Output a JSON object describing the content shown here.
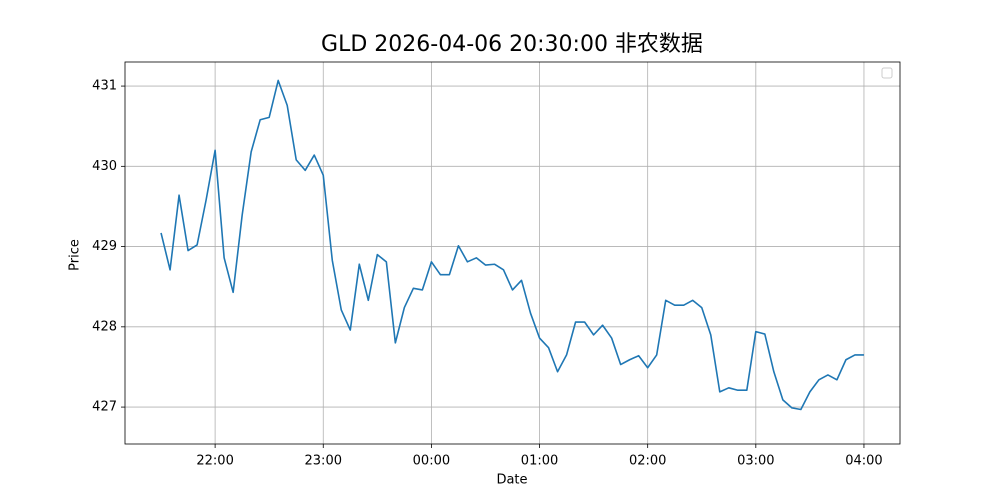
{
  "chart_data": {
    "type": "line",
    "title": "GLD 2026-04-06 20:30:00 非农数据",
    "x_label": "Date",
    "y_label": "Price",
    "x": [
      "21:30",
      "21:35",
      "21:40",
      "21:45",
      "21:50",
      "21:55",
      "22:00",
      "22:05",
      "22:10",
      "22:15",
      "22:20",
      "22:25",
      "22:30",
      "22:35",
      "22:40",
      "22:45",
      "22:50",
      "22:55",
      "23:00",
      "23:05",
      "23:10",
      "23:15",
      "23:20",
      "23:25",
      "23:30",
      "23:35",
      "23:40",
      "23:45",
      "23:50",
      "23:55",
      "00:00",
      "00:05",
      "00:10",
      "00:15",
      "00:20",
      "00:25",
      "00:30",
      "00:35",
      "00:40",
      "00:45",
      "00:50",
      "00:55",
      "01:00",
      "01:05",
      "01:10",
      "01:15",
      "01:20",
      "01:25",
      "01:30",
      "01:35",
      "01:40",
      "01:45",
      "01:50",
      "01:55",
      "02:00",
      "02:05",
      "02:10",
      "02:15",
      "02:20",
      "02:25",
      "02:30",
      "02:35",
      "02:40",
      "02:45",
      "02:50",
      "02:55",
      "03:00",
      "03:05",
      "03:10",
      "03:15",
      "03:20",
      "03:25",
      "03:30",
      "03:35",
      "03:40",
      "03:45",
      "03:50",
      "03:55",
      "04:00"
    ],
    "series": [
      {
        "name": "GLD",
        "color": "#1f77b4",
        "values": [
          429.17,
          428.71,
          429.64,
          428.95,
          429.02,
          429.58,
          430.2,
          428.86,
          428.43,
          429.39,
          430.18,
          430.58,
          430.61,
          431.07,
          430.76,
          430.08,
          429.95,
          430.14,
          429.89,
          428.83,
          428.21,
          427.96,
          428.78,
          428.33,
          428.9,
          428.81,
          427.8,
          428.24,
          428.48,
          428.46,
          428.81,
          428.65,
          428.65,
          429.01,
          428.81,
          428.86,
          428.77,
          428.78,
          428.71,
          428.46,
          428.58,
          428.17,
          427.86,
          427.74,
          427.44,
          427.65,
          428.06,
          428.06,
          427.9,
          428.02,
          427.86,
          427.53,
          427.59,
          427.64,
          427.49,
          427.65,
          428.33,
          428.27,
          428.27,
          428.33,
          428.24,
          427.9,
          427.19,
          427.24,
          427.21,
          427.21,
          427.94,
          427.91,
          427.44,
          427.09,
          426.99,
          426.97,
          427.19,
          427.34,
          427.4,
          427.34,
          427.59,
          427.65,
          427.65
        ]
      }
    ],
    "xlim": [
      "21:10",
      "04:20"
    ],
    "xticks": [
      "22:00",
      "23:00",
      "00:00",
      "01:00",
      "02:00",
      "03:00",
      "04:00"
    ],
    "ylim": [
      426.54,
      431.3
    ],
    "yticks": [
      427,
      428,
      429,
      430,
      431
    ],
    "grid": true
  }
}
